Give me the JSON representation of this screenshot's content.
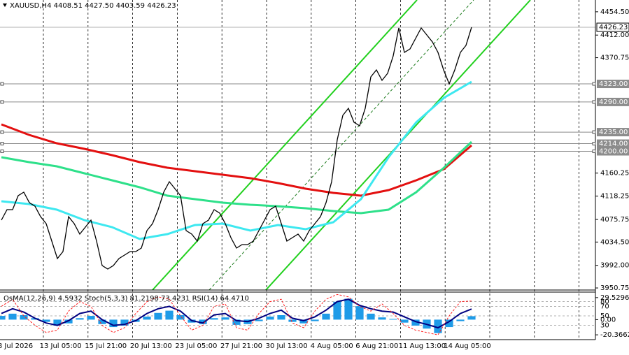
{
  "chart_data": [
    {
      "type": "line",
      "title": "XAUUSD,H4  4408.51 4427.50 4403.59 4426.23",
      "ylim": [
        3947,
        4476
      ],
      "yticks": [
        {
          "value": 4454.5,
          "label": "4454.50"
        },
        {
          "value": 4412,
          "label": "4412.00"
        },
        {
          "value": 4370.75,
          "label": "4370.75"
        },
        {
          "value": 4160.25,
          "label": "4160.25"
        },
        {
          "value": 4118.25,
          "label": "4118.25"
        },
        {
          "value": 4075.75,
          "label": "4075.75"
        },
        {
          "value": 4034.5,
          "label": "4034.50"
        },
        {
          "value": 3992,
          "label": "3992.00"
        },
        {
          "value": 3950.75,
          "label": "3950.75"
        }
      ],
      "levels": [
        {
          "value": 4323,
          "label": "4323.00"
        },
        {
          "value": 4290,
          "label": "4290.00"
        },
        {
          "value": 4235,
          "label": "4235.00"
        },
        {
          "value": 4214,
          "label": "4214.00"
        },
        {
          "value": 4200,
          "label": "4200.00"
        }
      ],
      "last_price": 4426.23,
      "x_labels": [
        "8 Jul 2026",
        "13 Jul 05:00",
        "15 Jul 21:00",
        "20 Jul 13:00",
        "23 Jul 05:00",
        "27 Jul 21:00",
        "30 Jul 13:00",
        "4 Aug 05:00",
        "6 Aug 21:00",
        "11 Aug 13:00",
        "14 Aug 05:00"
      ],
      "series": [
        {
          "color": "#000000",
          "values": [
            4074.5,
            4093.6,
            4093.6,
            4119.1,
            4125.5,
            4106.3,
            4099.9,
            4080.8,
            4068.1,
            4036.2,
            4004.4,
            4017.1,
            4080.8,
            4068.1,
            4049.0,
            4061.7,
            4074.5,
            4036.2,
            3991.6,
            3985.2,
            3991.6,
            4004.4,
            4010.7,
            4017.1,
            4017.1,
            4023.5,
            4055.4,
            4068.1,
            4093.6,
            4125.5,
            4144.6,
            4131.8,
            4119.1,
            4055.4,
            4049.0,
            4036.2,
            4068.1,
            4074.5,
            4093.6,
            4087.2,
            4068.1,
            4042.6,
            4023.5,
            4029.9,
            4029.9,
            4036.2,
            4055.4,
            4074.5,
            4093.6,
            4099.9,
            4068.1,
            4036.2,
            4042.6,
            4049.0,
            4036.2,
            4055.4,
            4068.1,
            4080.8,
            4106.3,
            4144.6,
            4221.1,
            4265.7,
            4278.4,
            4252.9,
            4246.6,
            4278.4,
            4335.8,
            4348.5,
            4329.4,
            4342.2,
            4374.0,
            4425.0,
            4380.4,
            4386.8,
            4405.9,
            4425.0,
            4412.3,
            4399.5,
            4380.4,
            4348.5,
            4323.0,
            4348.5,
            4380.4,
            4393.1,
            4426.23
          ]
        },
        {
          "color": "#e31010",
          "values": [
            4249.1,
            4230.0,
            4214.7,
            4204.5,
            4193.0,
            4180.3,
            4170.1,
            4163.7,
            4157.3,
            4151.0,
            4142.0,
            4131.8,
            4124.2,
            4119.1,
            4129.3,
            4147.1,
            4167.5,
            4210.9
          ]
        },
        {
          "color": "#2ee08a",
          "values": [
            4189.2,
            4180.3,
            4172.6,
            4159.9,
            4147.1,
            4134.4,
            4119.1,
            4112.7,
            4106.3,
            4102.5,
            4099.9,
            4096.1,
            4091.0,
            4087.2,
            4093.6,
            4125.5,
            4170.1,
            4217.2
          ]
        },
        {
          "color": "#3ee8f0",
          "values": [
            4108.9,
            4103.8,
            4093.6,
            4074.5,
            4061.7,
            4040.1,
            4049.0,
            4065.5,
            4068.1,
            4055.4,
            4065.5,
            4057.9,
            4070.6,
            4112.7,
            4189.2,
            4252.9,
            4297.5,
            4326.9
          ]
        }
      ]
    },
    {
      "type": "bar",
      "title": "OsMA(12,26,9) 4.5932 Stoch(5,3,3) 81.2198 73.4231 RSI(14) 64.4710",
      "ylim": [
        -26.8,
        36.9
      ],
      "yticks": [
        29.5296,
        {
          "value": 0,
          "label": "0.00"
        },
        -20.3662
      ],
      "y2lim": [
        0,
        100
      ],
      "y2ticks": [
        80,
        70,
        50,
        30
      ],
      "series": [
        {
          "type": "bar",
          "color": "#1e9be8",
          "values": [
            5,
            8,
            6,
            2,
            -3,
            -8,
            -5,
            2,
            5,
            -6,
            -10,
            -8,
            -3,
            4,
            9,
            12,
            6,
            -4,
            -6,
            2,
            3,
            -7,
            -6,
            -2,
            4,
            6,
            -3,
            -5,
            -2,
            8,
            24,
            28,
            18,
            8,
            3,
            1,
            -4,
            -8,
            -12,
            -18,
            -10,
            -2,
            4.5932
          ]
        },
        {
          "type": "line",
          "axis": "y2",
          "color": "#000080",
          "values": [
            55,
            65,
            58,
            45,
            35,
            30,
            40,
            55,
            60,
            42,
            30,
            32,
            40,
            55,
            65,
            70,
            60,
            40,
            35,
            52,
            55,
            40,
            38,
            45,
            55,
            62,
            45,
            40,
            48,
            62,
            80,
            85,
            72,
            65,
            60,
            58,
            48,
            38,
            32,
            25,
            38,
            55,
            64.471
          ]
        },
        {
          "type": "line",
          "axis": "y2",
          "color": "#ff2020",
          "values": [
            70,
            85,
            50,
            30,
            15,
            20,
            60,
            80,
            70,
            30,
            15,
            25,
            55,
            80,
            90,
            85,
            50,
            20,
            30,
            70,
            75,
            25,
            20,
            55,
            80,
            85,
            35,
            25,
            60,
            85,
            95,
            90,
            70,
            60,
            75,
            55,
            30,
            20,
            15,
            10,
            50,
            80,
            81.2198
          ]
        }
      ]
    }
  ]
}
